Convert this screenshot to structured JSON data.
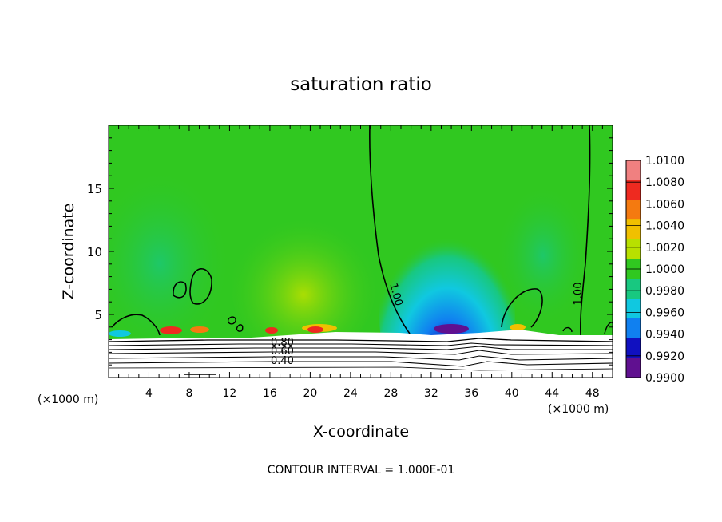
{
  "chart_data": {
    "type": "heatmap",
    "title": "saturation ratio",
    "xlabel": "X-coordinate",
    "ylabel": "Z-coordinate",
    "x_unit_label_left": "(×1000 m)",
    "x_unit_label_right": "(×1000 m)",
    "footer": "CONTOUR INTERVAL = 1.000E-01",
    "xlim": [
      0,
      50
    ],
    "ylim": [
      0,
      20
    ],
    "x_ticks": [
      4,
      8,
      12,
      16,
      20,
      24,
      28,
      32,
      36,
      40,
      44,
      48
    ],
    "y_ticks": [
      5,
      10,
      15
    ],
    "colorbar": {
      "labels": [
        "1.0100",
        "1.0080",
        "1.0060",
        "1.0040",
        "1.0020",
        "1.0000",
        "0.9980",
        "0.9960",
        "0.9940",
        "0.9920",
        "0.9900"
      ],
      "colors": [
        "#f08080",
        "#ee2a20",
        "#f47a10",
        "#f0c000",
        "#b8e000",
        "#30c820",
        "#18c880",
        "#10c8e0",
        "#1080f0",
        "#1010c0",
        "#601090"
      ]
    },
    "contour_labels": [
      {
        "text": "1.00",
        "x": 22.4,
        "z": 6.5
      },
      {
        "text": "1.00",
        "x": 46.2,
        "z": 6.9
      },
      {
        "text": "0.80",
        "x": 16.7,
        "z": 2.7
      },
      {
        "text": "0.60",
        "x": 16.7,
        "z": 2.1
      },
      {
        "text": "0.40",
        "x": 16.7,
        "z": 1.5
      }
    ],
    "fields": {
      "background_value": 1.0,
      "minimum_value": 0.99,
      "minimum_location": [
        34,
        4
      ],
      "maximum_value": 1.006,
      "maximum_location": [
        6,
        3.6
      ]
    }
  }
}
